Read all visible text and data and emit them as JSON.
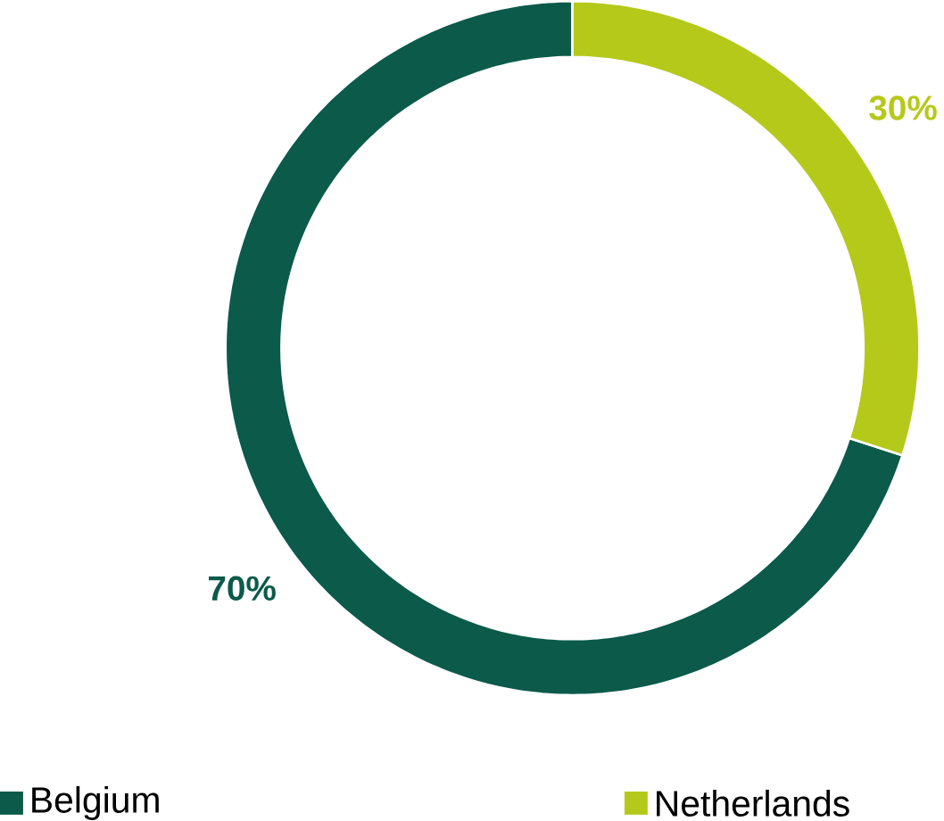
{
  "chart_data": {
    "type": "donut",
    "categories": [
      "Belgium",
      "Netherlands"
    ],
    "values": [
      70,
      30
    ],
    "colors": [
      "#0b5a4a",
      "#b5c91a"
    ],
    "value_labels": [
      "70%",
      "30%"
    ],
    "legend": "bottom"
  }
}
